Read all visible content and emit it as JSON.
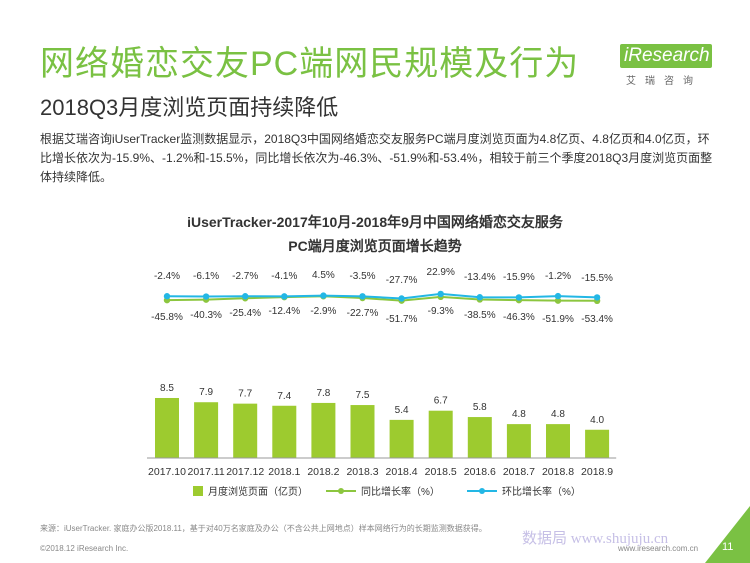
{
  "header": {
    "title": "网络婚恋交友PC端网民规模及行为",
    "subtitle": "2018Q3月度浏览页面持续降低",
    "logo_text": "iResearch",
    "logo_sub": "艾瑞咨询"
  },
  "summary": "根据艾瑞咨询iUserTracker监测数据显示，2018Q3中国网络婚恋交友服务PC端月度浏览页面为4.8亿页、4.8亿页和4.0亿页，环比增长依次为-15.9%、-1.2%和-15.5%，同比增长依次为-46.3%、-51.9%和-53.4%，相较于前三个季度2018Q3月度浏览页面整体持续降低。",
  "chart_data": {
    "type": "bar",
    "title_line1": "iUserTracker-2017年10月-2018年9月中国网络婚恋交友服务",
    "title_line2": "PC端月度浏览页面增长趋势",
    "categories": [
      "2017.10",
      "2017.11",
      "2017.12",
      "2018.1",
      "2018.2",
      "2018.3",
      "2018.4",
      "2018.5",
      "2018.6",
      "2018.7",
      "2018.8",
      "2018.9"
    ],
    "series": [
      {
        "name": "月度浏览页面（亿页）",
        "type": "bar",
        "values": [
          8.5,
          7.9,
          7.7,
          7.4,
          7.8,
          7.5,
          5.4,
          6.7,
          5.8,
          4.8,
          4.8,
          4.0
        ],
        "color": "#9dcb2f"
      },
      {
        "name": "同比增长率（%）",
        "type": "line",
        "values": [
          -45.8,
          -40.3,
          -25.4,
          -12.4,
          -2.9,
          -22.7,
          -51.7,
          -9.3,
          -38.5,
          -46.3,
          -51.9,
          -53.4
        ],
        "labels": [
          "-45.8%",
          "-40.3%",
          "-25.4%",
          "-12.4%",
          "-2.9%",
          "-22.7%",
          "-51.7%",
          "-9.3%",
          "-38.5%",
          "-46.3%",
          "-51.9%",
          "-53.4%"
        ],
        "color": "#8cc63f"
      },
      {
        "name": "环比增长率（%）",
        "type": "line",
        "values": [
          -2.4,
          -6.1,
          -2.7,
          -4.1,
          4.5,
          -3.5,
          -27.7,
          22.9,
          -13.4,
          -15.9,
          -1.2,
          -15.5
        ],
        "labels": [
          "-2.4%",
          "-6.1%",
          "-2.7%",
          "-4.1%",
          "4.5%",
          "-3.5%",
          "-27.7%",
          "22.9%",
          "-13.4%",
          "-15.9%",
          "-1.2%",
          "-15.5%"
        ],
        "color": "#23b7e5"
      }
    ],
    "legend_position": "bottom",
    "grid": false
  },
  "footer": {
    "source": "来源：iUserTracker. 家庭办公版2018.11，基于对40万名家庭及办公（不含公共上网地点）样本网络行为的长期监测数据获得。",
    "copyright": "©2018.12 iResearch Inc.",
    "site": "www.iresearch.com.cn",
    "page": "11",
    "watermark": "数据局 www.shujuju.cn"
  },
  "colors": {
    "accent": "#7ac143",
    "bar": "#9dcb2f",
    "yoy": "#8cc63f",
    "mom": "#23b7e5"
  }
}
